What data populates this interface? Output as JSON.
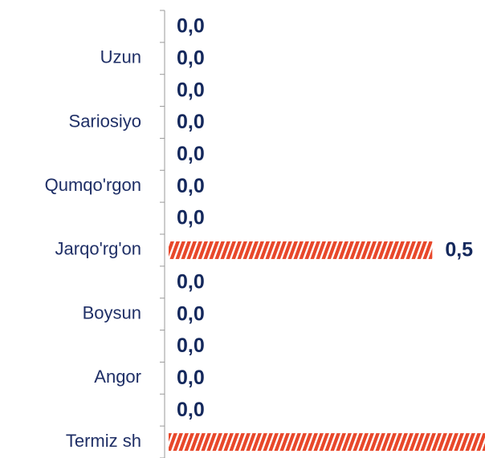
{
  "chart_data": {
    "type": "hbar",
    "categories": [
      null,
      "Uzun",
      null,
      "Sariosiyo",
      null,
      "Qumqo'rgon",
      null,
      "Jarqo'rg'on",
      null,
      "Boysun",
      null,
      "Angor",
      null,
      "Termiz sh"
    ],
    "values": [
      0,
      0,
      0,
      0,
      0,
      0,
      0,
      0.5,
      0,
      0,
      0,
      0,
      0,
      0.6
    ],
    "value_labels": [
      "0,0",
      "0,0",
      "0,0",
      "0,0",
      "0,0",
      "0,0",
      "0,0",
      "0,5",
      "0,0",
      "0,0",
      "0,0",
      "0,0",
      "0,0",
      null
    ],
    "color": "#e8482b",
    "xlim": [
      0,
      0.6
    ]
  }
}
